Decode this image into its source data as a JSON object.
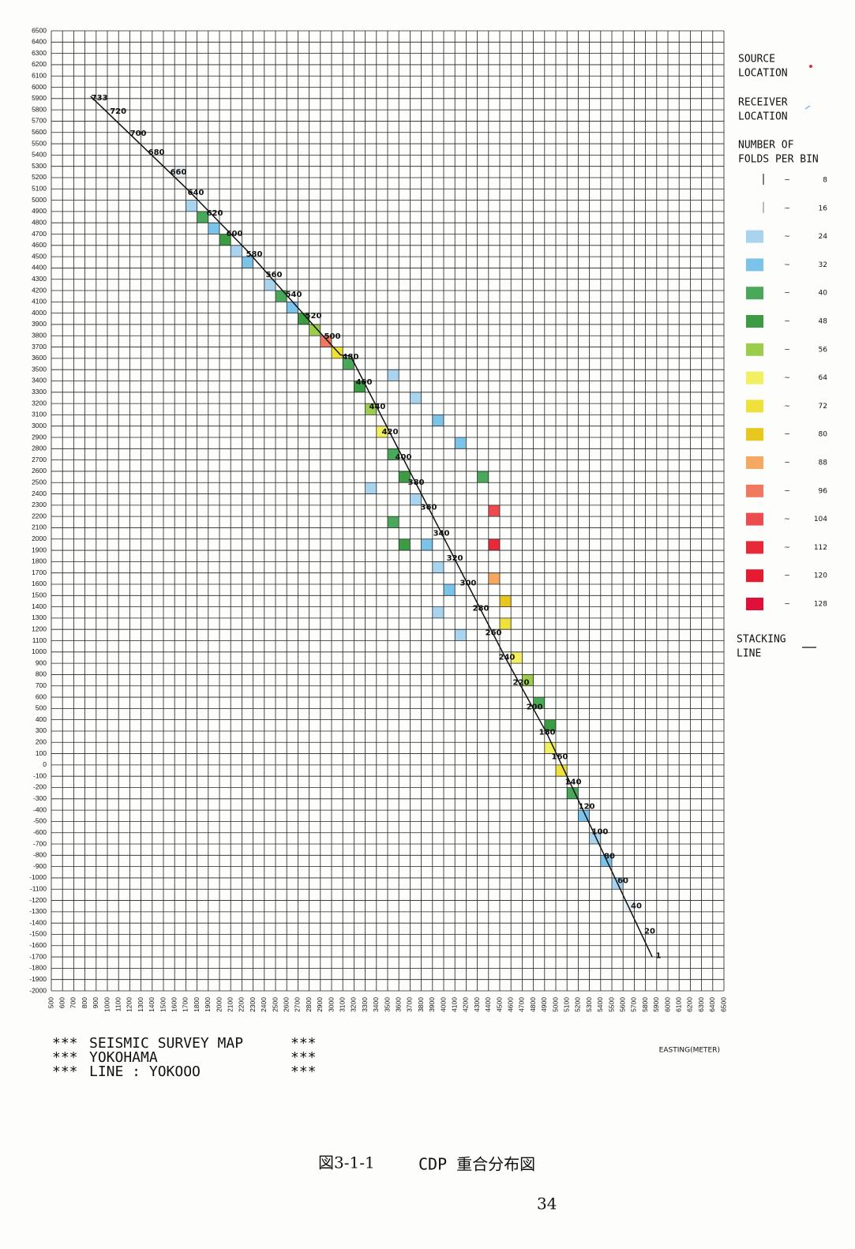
{
  "chart_data": {
    "type": "line",
    "xlabel": "EASTING(METER)",
    "xlim": [
      500,
      6500
    ],
    "ylim": [
      -2000,
      6500
    ],
    "xticks": [
      500,
      600,
      700,
      800,
      900,
      1000,
      1100,
      1200,
      1300,
      1400,
      1500,
      1600,
      1700,
      1800,
      1900,
      2000,
      2100,
      2200,
      2300,
      2400,
      2500,
      2600,
      2700,
      2800,
      2900,
      3000,
      3100,
      3200,
      3300,
      3400,
      3500,
      3600,
      3700,
      3800,
      3900,
      4000,
      4100,
      4200,
      4300,
      4400,
      4500,
      4600,
      4700,
      4800,
      4900,
      5000,
      5100,
      5200,
      5300,
      5400,
      5500,
      5600,
      5700,
      5800,
      5900,
      6000,
      6100,
      6200,
      6300,
      6400,
      6500
    ],
    "yticks": [
      -2000,
      -1900,
      -1800,
      -1700,
      -1600,
      -1500,
      -1400,
      -1300,
      -1200,
      -1100,
      -1000,
      -900,
      -800,
      -700,
      -600,
      -500,
      -400,
      -300,
      -200,
      -100,
      0,
      100,
      200,
      300,
      400,
      500,
      600,
      700,
      800,
      900,
      1000,
      1100,
      1200,
      1300,
      1400,
      1500,
      1600,
      1700,
      1800,
      1900,
      2000,
      2100,
      2200,
      2300,
      2400,
      2500,
      2600,
      2700,
      2800,
      2900,
      3000,
      3100,
      3200,
      3300,
      3400,
      3500,
      3600,
      3700,
      3800,
      3900,
      4000,
      4100,
      4200,
      4300,
      4400,
      4500,
      4600,
      4700,
      4800,
      4900,
      5000,
      5100,
      5200,
      5300,
      5400,
      5500,
      5600,
      5700,
      5800,
      5900,
      6000,
      6100,
      6200,
      6300,
      6400,
      6500
    ],
    "grid": true,
    "series": [
      {
        "color": "#111111",
        "x": [
          850,
          1720,
          2240,
          2850,
          3080,
          3170,
          4550,
          4920,
          5860
        ],
        "values": [
          5920,
          5090,
          4560,
          3880,
          3630,
          3620,
          950,
          280,
          -1700
        ]
      }
    ],
    "annotations": [
      {
        "text": "733",
        "x": 930,
        "y": 5906
      },
      {
        "text": "720",
        "x": 1096,
        "y": 5787
      },
      {
        "text": "700",
        "x": 1275,
        "y": 5591
      },
      {
        "text": "680",
        "x": 1437,
        "y": 5423
      },
      {
        "text": "660",
        "x": 1634,
        "y": 5248
      },
      {
        "text": "640",
        "x": 1789,
        "y": 5066
      },
      {
        "text": "620",
        "x": 1958,
        "y": 4885
      },
      {
        "text": "600",
        "x": 2134,
        "y": 4703
      },
      {
        "text": "580",
        "x": 2310,
        "y": 4521
      },
      {
        "text": "560",
        "x": 2486,
        "y": 4339
      },
      {
        "text": "540",
        "x": 2662,
        "y": 4164
      },
      {
        "text": "520",
        "x": 2838,
        "y": 3976
      },
      {
        "text": "500",
        "x": 3007,
        "y": 3794
      },
      {
        "text": "480",
        "x": 3169,
        "y": 3612
      },
      {
        "text": "460",
        "x": 3289,
        "y": 3388
      },
      {
        "text": "440",
        "x": 3408,
        "y": 3171
      },
      {
        "text": "420",
        "x": 3521,
        "y": 2948
      },
      {
        "text": "400",
        "x": 3641,
        "y": 2724
      },
      {
        "text": "380",
        "x": 3754,
        "y": 2500
      },
      {
        "text": "360",
        "x": 3866,
        "y": 2283
      },
      {
        "text": "340",
        "x": 3979,
        "y": 2052
      },
      {
        "text": "320",
        "x": 4099,
        "y": 1829
      },
      {
        "text": "300",
        "x": 4218,
        "y": 1612
      },
      {
        "text": "280",
        "x": 4331,
        "y": 1388
      },
      {
        "text": "260",
        "x": 4444,
        "y": 1171
      },
      {
        "text": "240",
        "x": 4563,
        "y": 955
      },
      {
        "text": "220",
        "x": 4690,
        "y": 731
      },
      {
        "text": "200",
        "x": 4810,
        "y": 514
      },
      {
        "text": "180",
        "x": 4923,
        "y": 290
      },
      {
        "text": "160",
        "x": 5035,
        "y": 73
      },
      {
        "text": "140",
        "x": 5155,
        "y": -150
      },
      {
        "text": "120",
        "x": 5275,
        "y": -367
      },
      {
        "text": "100",
        "x": 5394,
        "y": -591
      },
      {
        "text": "80",
        "x": 5479,
        "y": -808
      },
      {
        "text": "60",
        "x": 5599,
        "y": -1024
      },
      {
        "text": "40",
        "x": 5718,
        "y": -1248
      },
      {
        "text": "20",
        "x": 5838,
        "y": -1472
      },
      {
        "text": "1",
        "x": 5915,
        "y": -1689
      }
    ],
    "coverage": [
      {
        "x": 1600,
        "y": 5200,
        "folds": 16
      },
      {
        "x": 1700,
        "y": 4900,
        "folds": 24
      },
      {
        "x": 1800,
        "y": 4800,
        "folds": 40
      },
      {
        "x": 1900,
        "y": 4700,
        "folds": 32
      },
      {
        "x": 2000,
        "y": 4600,
        "folds": 48
      },
      {
        "x": 2100,
        "y": 4500,
        "folds": 24
      },
      {
        "x": 2200,
        "y": 4400,
        "folds": 32
      },
      {
        "x": 2400,
        "y": 4200,
        "folds": 24
      },
      {
        "x": 2500,
        "y": 4100,
        "folds": 40
      },
      {
        "x": 2600,
        "y": 4000,
        "folds": 32
      },
      {
        "x": 2700,
        "y": 3900,
        "folds": 48
      },
      {
        "x": 2800,
        "y": 3800,
        "folds": 56
      },
      {
        "x": 2900,
        "y": 3700,
        "folds": 96
      },
      {
        "x": 3000,
        "y": 3600,
        "folds": 72
      },
      {
        "x": 3100,
        "y": 3500,
        "folds": 40
      },
      {
        "x": 3200,
        "y": 3300,
        "folds": 48
      },
      {
        "x": 3300,
        "y": 3100,
        "folds": 56
      },
      {
        "x": 3400,
        "y": 2900,
        "folds": 64
      },
      {
        "x": 3500,
        "y": 2700,
        "folds": 40
      },
      {
        "x": 3600,
        "y": 2500,
        "folds": 48
      },
      {
        "x": 3700,
        "y": 2300,
        "folds": 24
      },
      {
        "x": 3500,
        "y": 3400,
        "folds": 24
      },
      {
        "x": 3700,
        "y": 3200,
        "folds": 24
      },
      {
        "x": 3900,
        "y": 3000,
        "folds": 32
      },
      {
        "x": 4100,
        "y": 2800,
        "folds": 32
      },
      {
        "x": 4300,
        "y": 2500,
        "folds": 40
      },
      {
        "x": 4400,
        "y": 2200,
        "folds": 104
      },
      {
        "x": 4400,
        "y": 1900,
        "folds": 112
      },
      {
        "x": 4400,
        "y": 1600,
        "folds": 88
      },
      {
        "x": 4500,
        "y": 1400,
        "folds": 80
      },
      {
        "x": 4500,
        "y": 1200,
        "folds": 72
      },
      {
        "x": 4600,
        "y": 900,
        "folds": 64
      },
      {
        "x": 4700,
        "y": 700,
        "folds": 56
      },
      {
        "x": 4800,
        "y": 500,
        "folds": 40
      },
      {
        "x": 4900,
        "y": 300,
        "folds": 48
      },
      {
        "x": 4900,
        "y": 100,
        "folds": 64
      },
      {
        "x": 5000,
        "y": -100,
        "folds": 72
      },
      {
        "x": 5100,
        "y": -300,
        "folds": 40
      },
      {
        "x": 5200,
        "y": -500,
        "folds": 32
      },
      {
        "x": 5300,
        "y": -700,
        "folds": 24
      },
      {
        "x": 5400,
        "y": -900,
        "folds": 32
      },
      {
        "x": 5500,
        "y": -1100,
        "folds": 24
      },
      {
        "x": 5600,
        "y": -1300,
        "folds": 16
      },
      {
        "x": 3800,
        "y": 1900,
        "folds": 32
      },
      {
        "x": 3900,
        "y": 1700,
        "folds": 24
      },
      {
        "x": 4000,
        "y": 1500,
        "folds": 32
      },
      {
        "x": 3300,
        "y": 2400,
        "folds": 24
      },
      {
        "x": 3500,
        "y": 2100,
        "folds": 40
      },
      {
        "x": 3600,
        "y": 1900,
        "folds": 48
      },
      {
        "x": 3900,
        "y": 1300,
        "folds": 24
      },
      {
        "x": 4100,
        "y": 1100,
        "folds": 24
      }
    ],
    "legend": {
      "source": [
        "SOURCE",
        "LOCATION"
      ],
      "source_color": "#e03030",
      "receiver": [
        "RECEIVER",
        "LOCATION"
      ],
      "receiver_color": "#7fb8e0",
      "folds_title": [
        "NUMBER OF",
        "FOLDS PER BIN"
      ],
      "separator": "~",
      "folds": [
        {
          "value": 8,
          "color": "#f4f6f8"
        },
        {
          "value": 16,
          "color": "#e6eef4"
        },
        {
          "value": 24,
          "color": "#a8d4f0"
        },
        {
          "value": 32,
          "color": "#7cc3ea"
        },
        {
          "value": 40,
          "color": "#4aa85a"
        },
        {
          "value": 48,
          "color": "#3c9c44"
        },
        {
          "value": 56,
          "color": "#9ccc4c"
        },
        {
          "value": 64,
          "color": "#f2f060"
        },
        {
          "value": 72,
          "color": "#eee23a"
        },
        {
          "value": 80,
          "color": "#e8c81e"
        },
        {
          "value": 88,
          "color": "#f4a860"
        },
        {
          "value": 96,
          "color": "#f07860"
        },
        {
          "value": 104,
          "color": "#ec4c50"
        },
        {
          "value": 112,
          "color": "#e82a38"
        },
        {
          "value": 120,
          "color": "#e61a30"
        },
        {
          "value": 128,
          "color": "#e0103a"
        }
      ],
      "stacking": [
        "STACKING",
        "LINE"
      ]
    }
  },
  "caption": {
    "lines": [
      [
        "***",
        "SEISMIC SURVEY MAP",
        "***"
      ],
      [
        "***",
        "YOKOHAMA",
        "***"
      ],
      [
        "***",
        "LINE  :   YOKOOO",
        "***"
      ]
    ],
    "figure": "図3-1-1",
    "figure_title": "CDP 重合分布図",
    "page": "34"
  }
}
